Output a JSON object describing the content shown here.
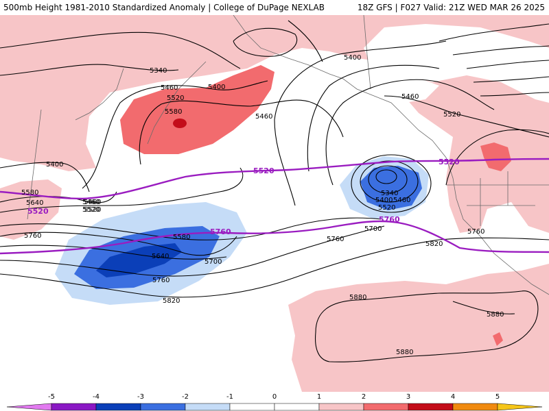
{
  "header": {
    "left": "500mb Height 1981-2010 Standardized Anomaly | College of DuPage NEXLAB",
    "right": "18Z GFS | F027 Valid: 21Z WED MAR 26 2025"
  },
  "colors": {
    "pos1": "#f7c5c7",
    "pos2": "#f26b6e",
    "pos3": "#c30d1a",
    "neg1": "#c5dcf7",
    "neg2": "#3b6fe0",
    "neg3": "#0b3fb8",
    "contour": "#000000",
    "thickness_line": "#9a1cc0"
  },
  "contour_labels": [
    "5340",
    "5400",
    "5460",
    "5520",
    "5580",
    "5400",
    "5460",
    "5400",
    "5460",
    "5460",
    "5520",
    "5580",
    "5640",
    "5520",
    "5760",
    "5580",
    "5640",
    "5700",
    "5760",
    "5820",
    "5340",
    "5400",
    "5460",
    "5520",
    "5700",
    "5760",
    "5820",
    "5760",
    "5880",
    "5880",
    "5880",
    "5460",
    "5520"
  ],
  "purple_labels": [
    "5520",
    "5520",
    "5520",
    "5760",
    "5760"
  ],
  "colorbar": {
    "ticks": [
      "-5",
      "-4",
      "-3",
      "-2",
      "-1",
      "0",
      "1",
      "2",
      "3",
      "4",
      "5"
    ]
  }
}
